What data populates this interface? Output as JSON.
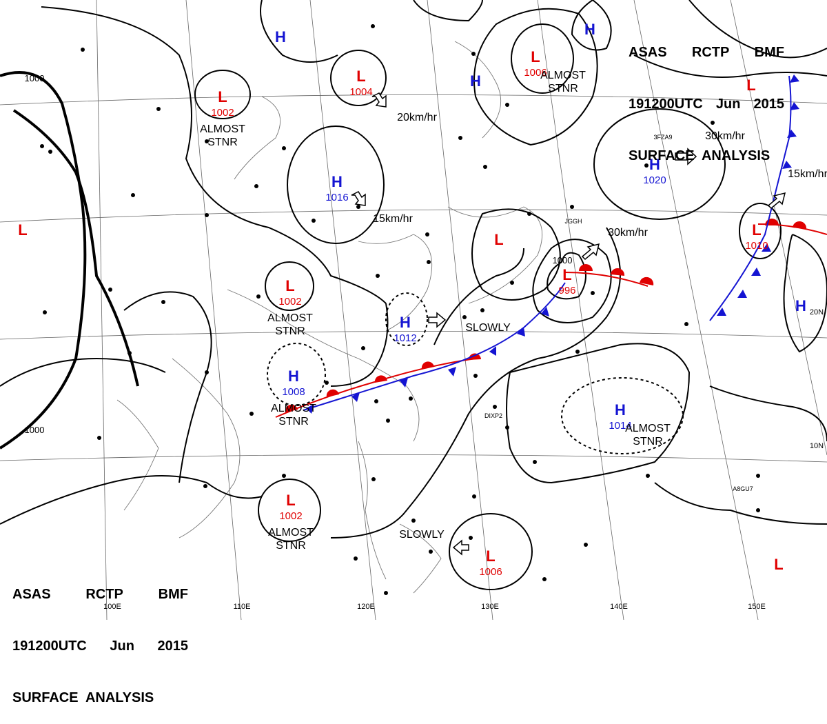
{
  "header_top": {
    "line1": [
      "ASAS",
      "RCTP",
      "BMF"
    ],
    "line2": [
      "191200UTC",
      "Jun",
      "2015"
    ],
    "line3": "SURFACE  ANALYSIS"
  },
  "header_bottom": {
    "line1": [
      "ASAS",
      "RCTP",
      "BMF"
    ],
    "line2": [
      "191200UTC",
      "Jun",
      "2015"
    ],
    "line3": "SURFACE  ANALYSIS"
  },
  "colors": {
    "high": "#1414d2",
    "low": "#e00000",
    "cold_front": "#1414d2",
    "warm_front": "#e00000"
  },
  "pressure_centers": [
    {
      "type": "L",
      "value": "1002",
      "note": "ALMOST\nSTNR"
    },
    {
      "type": "L",
      "value": "1004",
      "note": ""
    },
    {
      "type": "L",
      "value": "1006",
      "note": "ALMOST\nSTNR"
    },
    {
      "type": "H",
      "value": "",
      "note": ""
    },
    {
      "type": "H",
      "value": "",
      "note": ""
    },
    {
      "type": "H",
      "value": "",
      "note": ""
    },
    {
      "type": "L",
      "value": "",
      "note": ""
    },
    {
      "type": "L",
      "value": "",
      "note": ""
    },
    {
      "type": "H",
      "value": "1016",
      "note": ""
    },
    {
      "type": "H",
      "value": "1020",
      "note": ""
    },
    {
      "type": "L",
      "value": "1010",
      "note": ""
    },
    {
      "type": "L",
      "value": "",
      "note": ""
    },
    {
      "type": "L",
      "value": "1002",
      "note": "ALMOST\nSTNR"
    },
    {
      "type": "H",
      "value": "1012",
      "note": ""
    },
    {
      "type": "L",
      "value": "996",
      "note": ""
    },
    {
      "type": "H",
      "value": "1008",
      "note": "ALMOST\nSTNR"
    },
    {
      "type": "H",
      "value": "1014",
      "note": "ALMOST\nSTNR"
    },
    {
      "type": "H",
      "value": "",
      "note": ""
    },
    {
      "type": "L",
      "value": "1002",
      "note": "ALMOST\nSTNR"
    },
    {
      "type": "L",
      "value": "1006",
      "note": ""
    },
    {
      "type": "L",
      "value": "",
      "note": ""
    }
  ],
  "motion_labels": [
    "20km/hr",
    "15km/hr",
    "30km/hr",
    "30km/hr",
    "15km/hr",
    "SLOWLY",
    "SLOWLY"
  ],
  "isobar_labels": [
    "1000",
    "1000",
    "1000"
  ],
  "longitude_labels": [
    "100E",
    "110E",
    "120E",
    "130E",
    "140E",
    "150E"
  ],
  "latitude_labels": [
    "20N",
    "10N"
  ],
  "station_labels": [
    "JGGH",
    "3FZA9",
    "DIXP2",
    "A8GU7"
  ]
}
